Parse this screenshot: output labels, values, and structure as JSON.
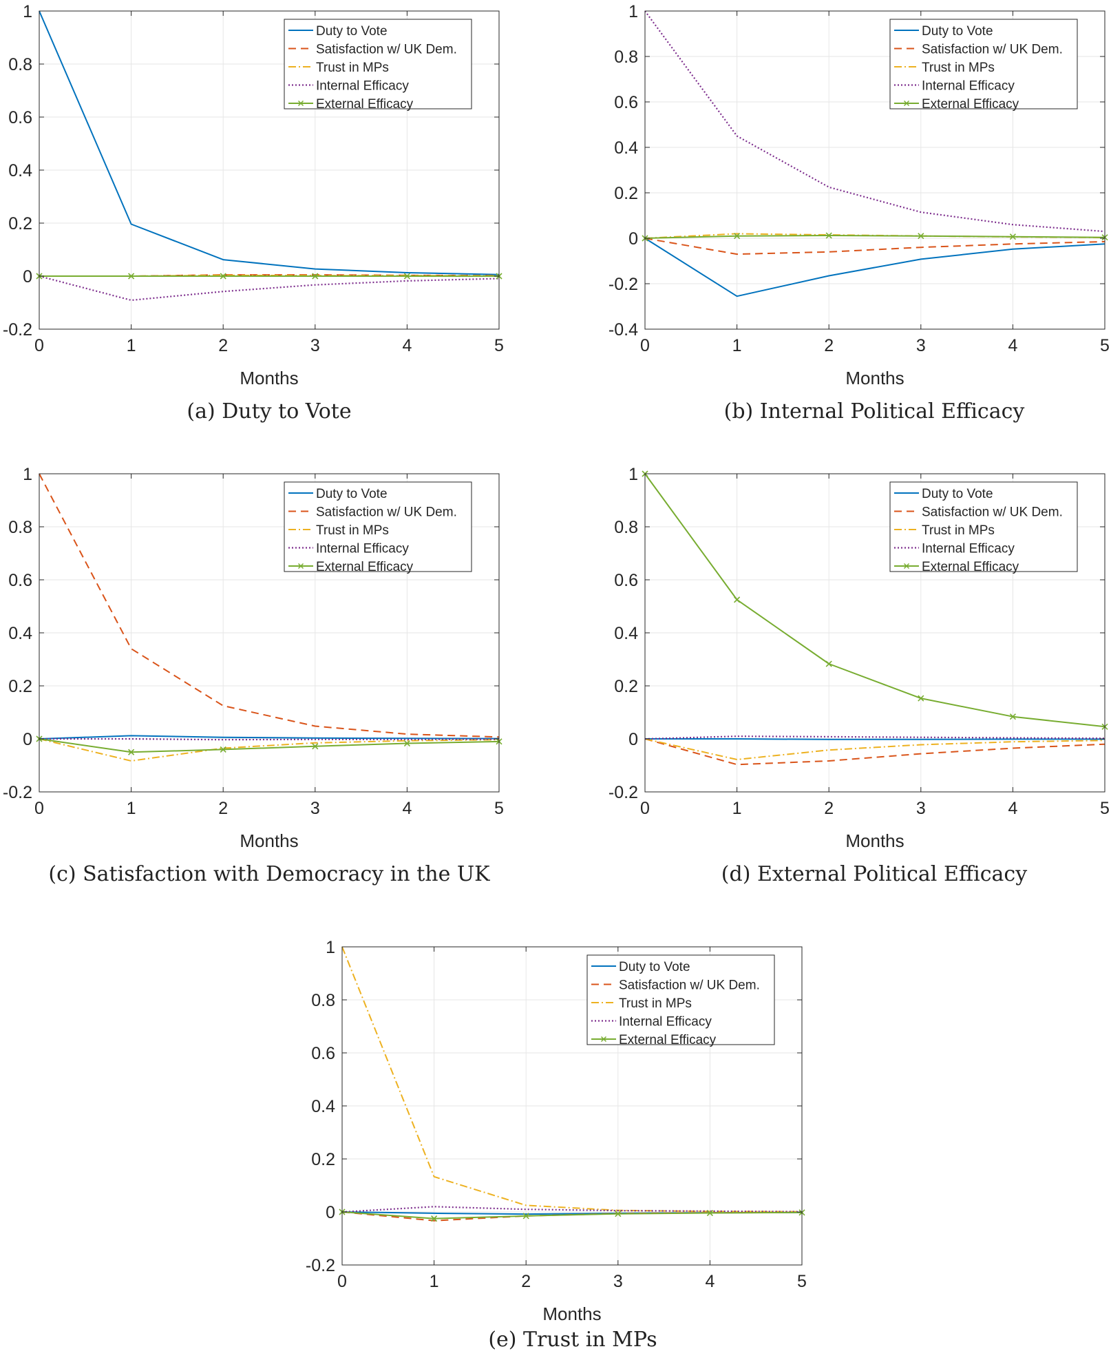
{
  "colors": {
    "duty": "#0072BD",
    "satisfaction": "#D95319",
    "trust": "#EDB120",
    "internal": "#7E2F8E",
    "external": "#77AC30",
    "axis": "#262626",
    "grid": "#e6e6e6"
  },
  "chart_data": [
    {
      "type": "line",
      "caption": "(a)  Duty to Vote",
      "xlabel": "Months",
      "ylabel": "",
      "xlim": [
        0,
        5
      ],
      "ylim": [
        -0.2,
        1
      ],
      "xticks": [
        0,
        1,
        2,
        3,
        4,
        5
      ],
      "xtick_labels": [
        "0",
        "1",
        "2",
        "3",
        "4",
        "5"
      ],
      "yticks": [
        -0.2,
        0,
        0.2,
        0.4,
        0.6,
        0.8,
        1
      ],
      "ytick_labels": [
        "-0.2",
        "0",
        "0.2",
        "0.4",
        "0.6",
        "0.8",
        "1"
      ],
      "grid": true,
      "legend_position": "top-right",
      "x": [
        0,
        1,
        2,
        3,
        4,
        5
      ],
      "series": [
        {
          "name": "Duty to Vote",
          "key": "duty",
          "values": [
            1,
            0.196,
            0.062,
            0.027,
            0.013,
            0.006
          ]
        },
        {
          "name": "Satisfaction w/ UK Dem.",
          "key": "satisfaction",
          "values": [
            0,
            0,
            0.005,
            0.005,
            0.003,
            0.002
          ]
        },
        {
          "name": "Trust in MPs",
          "key": "trust",
          "values": [
            0,
            0,
            0.003,
            0.002,
            0.002,
            0.001
          ]
        },
        {
          "name": "Internal Efficacy",
          "key": "internal",
          "values": [
            0,
            -0.091,
            -0.058,
            -0.033,
            -0.018,
            -0.009
          ]
        },
        {
          "name": "External Efficacy",
          "key": "external",
          "values": [
            0,
            0,
            0,
            0,
            0,
            0
          ]
        }
      ]
    },
    {
      "type": "line",
      "caption": "(b)  Internal Political Efficacy",
      "xlabel": "Months",
      "ylabel": "",
      "xlim": [
        0,
        5
      ],
      "ylim": [
        -0.4,
        1
      ],
      "xticks": [
        0,
        1,
        2,
        3,
        4,
        5
      ],
      "xtick_labels": [
        "0",
        "1",
        "2",
        "3",
        "4",
        "5"
      ],
      "yticks": [
        -0.4,
        -0.2,
        0,
        0.2,
        0.4,
        0.6,
        0.8,
        1
      ],
      "ytick_labels": [
        "-0.4",
        "-0.2",
        "0",
        "0.2",
        "0.4",
        "0.6",
        "0.8",
        "1"
      ],
      "grid": true,
      "legend_position": "top-right",
      "x": [
        0,
        1,
        2,
        3,
        4,
        5
      ],
      "series": [
        {
          "name": "Duty to Vote",
          "key": "duty",
          "values": [
            0,
            -0.255,
            -0.165,
            -0.092,
            -0.048,
            -0.025
          ]
        },
        {
          "name": "Satisfaction w/ UK Dem.",
          "key": "satisfaction",
          "values": [
            0,
            -0.07,
            -0.06,
            -0.04,
            -0.025,
            -0.015
          ]
        },
        {
          "name": "Trust in MPs",
          "key": "trust",
          "values": [
            0,
            0.02,
            0.015,
            0.01,
            0.006,
            0.003
          ]
        },
        {
          "name": "Internal Efficacy",
          "key": "internal",
          "values": [
            1,
            0.45,
            0.225,
            0.115,
            0.06,
            0.03
          ]
        },
        {
          "name": "External Efficacy",
          "key": "external",
          "values": [
            0,
            0.01,
            0.012,
            0.01,
            0.007,
            0.004
          ]
        }
      ]
    },
    {
      "type": "line",
      "caption": "(c)  Satisfaction with Democracy in the UK",
      "xlabel": "Months",
      "ylabel": "",
      "xlim": [
        0,
        5
      ],
      "ylim": [
        -0.2,
        1
      ],
      "xticks": [
        0,
        1,
        2,
        3,
        4,
        5
      ],
      "xtick_labels": [
        "0",
        "1",
        "2",
        "3",
        "4",
        "5"
      ],
      "yticks": [
        -0.2,
        0,
        0.2,
        0.4,
        0.6,
        0.8,
        1
      ],
      "ytick_labels": [
        "-0.2",
        "0",
        "0.2",
        "0.4",
        "0.6",
        "0.8",
        "1"
      ],
      "grid": true,
      "legend_position": "top-right",
      "x": [
        0,
        1,
        2,
        3,
        4,
        5
      ],
      "series": [
        {
          "name": "Duty to Vote",
          "key": "duty",
          "values": [
            0,
            0.012,
            0.006,
            0.003,
            0.002,
            0.001
          ]
        },
        {
          "name": "Satisfaction w/ UK Dem.",
          "key": "satisfaction",
          "values": [
            1,
            0.34,
            0.125,
            0.048,
            0.018,
            0.007
          ]
        },
        {
          "name": "Trust in MPs",
          "key": "trust",
          "values": [
            0,
            -0.083,
            -0.035,
            -0.015,
            -0.007,
            -0.003
          ]
        },
        {
          "name": "Internal Efficacy",
          "key": "internal",
          "values": [
            0,
            0,
            -0.003,
            -0.002,
            -0.002,
            -0.001
          ]
        },
        {
          "name": "External Efficacy",
          "key": "external",
          "values": [
            0,
            -0.05,
            -0.04,
            -0.028,
            -0.017,
            -0.01
          ]
        }
      ]
    },
    {
      "type": "line",
      "caption": "(d)  External Political Efficacy",
      "xlabel": "Months",
      "ylabel": "",
      "xlim": [
        0,
        5
      ],
      "ylim": [
        -0.2,
        1
      ],
      "xticks": [
        0,
        1,
        2,
        3,
        4,
        5
      ],
      "xtick_labels": [
        "0",
        "1",
        "2",
        "3",
        "4",
        "5"
      ],
      "yticks": [
        -0.2,
        0,
        0.2,
        0.4,
        0.6,
        0.8,
        1
      ],
      "ytick_labels": [
        "-0.2",
        "0",
        "0.2",
        "0.4",
        "0.6",
        "0.8",
        "1"
      ],
      "grid": true,
      "legend_position": "top-right",
      "x": [
        0,
        1,
        2,
        3,
        4,
        5
      ],
      "series": [
        {
          "name": "Duty to Vote",
          "key": "duty",
          "values": [
            0,
            0,
            -0.002,
            -0.002,
            -0.001,
            -0.001
          ]
        },
        {
          "name": "Satisfaction w/ UK Dem.",
          "key": "satisfaction",
          "values": [
            0,
            -0.097,
            -0.083,
            -0.056,
            -0.035,
            -0.02
          ]
        },
        {
          "name": "Trust in MPs",
          "key": "trust",
          "values": [
            0,
            -0.078,
            -0.042,
            -0.022,
            -0.011,
            -0.006
          ]
        },
        {
          "name": "Internal Efficacy",
          "key": "internal",
          "values": [
            0,
            0.01,
            0.008,
            0.006,
            0.004,
            0.002
          ]
        },
        {
          "name": "External Efficacy",
          "key": "external",
          "values": [
            1,
            0.525,
            0.283,
            0.153,
            0.084,
            0.046
          ]
        }
      ]
    },
    {
      "type": "line",
      "caption": "(e)  Trust in MPs",
      "xlabel": "Months",
      "ylabel": "",
      "xlim": [
        0,
        5
      ],
      "ylim": [
        -0.2,
        1
      ],
      "xticks": [
        0,
        1,
        2,
        3,
        4,
        5
      ],
      "xtick_labels": [
        "0",
        "1",
        "2",
        "3",
        "4",
        "5"
      ],
      "yticks": [
        -0.2,
        0,
        0.2,
        0.4,
        0.6,
        0.8,
        1
      ],
      "ytick_labels": [
        "-0.2",
        "0",
        "0.2",
        "0.4",
        "0.6",
        "0.8",
        "1"
      ],
      "grid": true,
      "legend_position": "top-right",
      "x": [
        0,
        1,
        2,
        3,
        4,
        5
      ],
      "series": [
        {
          "name": "Duty to Vote",
          "key": "duty",
          "values": [
            0,
            -0.005,
            -0.008,
            -0.005,
            -0.003,
            -0.002
          ]
        },
        {
          "name": "Satisfaction w/ UK Dem.",
          "key": "satisfaction",
          "values": [
            0,
            -0.033,
            -0.015,
            -0.006,
            -0.003,
            -0.001
          ]
        },
        {
          "name": "Trust in MPs",
          "key": "trust",
          "values": [
            1,
            0.133,
            0.025,
            0.006,
            0.002,
            0.001
          ]
        },
        {
          "name": "Internal Efficacy",
          "key": "internal",
          "values": [
            0,
            0.02,
            0.01,
            0.005,
            0.003,
            0.001
          ]
        },
        {
          "name": "External Efficacy",
          "key": "external",
          "values": [
            0,
            -0.025,
            -0.015,
            -0.007,
            -0.004,
            -0.002
          ]
        }
      ]
    }
  ]
}
